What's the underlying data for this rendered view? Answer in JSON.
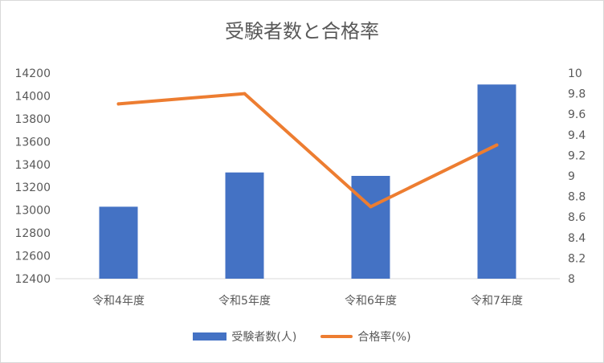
{
  "chart_data": {
    "type": "bar",
    "title": "受験者数と合格率",
    "categories": [
      "令和4年度",
      "令和5年度",
      "令和6年度",
      "令和7年度"
    ],
    "series": [
      {
        "name": "受験者数(人)",
        "type": "bar",
        "axis": "left",
        "color": "#4472c4",
        "values": [
          13030,
          13330,
          13300,
          14100
        ]
      },
      {
        "name": "合格率(%)",
        "type": "line",
        "axis": "right",
        "color": "#ed7d31",
        "values": [
          9.7,
          9.8,
          8.7,
          9.3
        ]
      }
    ],
    "y_left": {
      "min": 12400,
      "max": 14200,
      "step": 200,
      "ticks": [
        "12400",
        "12600",
        "12800",
        "13000",
        "13200",
        "13400",
        "13600",
        "13800",
        "14000",
        "14200"
      ]
    },
    "y_right": {
      "min": 8,
      "max": 10,
      "step": 0.2,
      "ticks": [
        "8",
        "8.2",
        "8.4",
        "8.6",
        "8.8",
        "9",
        "9.2",
        "9.4",
        "9.6",
        "9.8",
        "10"
      ]
    },
    "grid": false,
    "legend_position": "bottom"
  }
}
